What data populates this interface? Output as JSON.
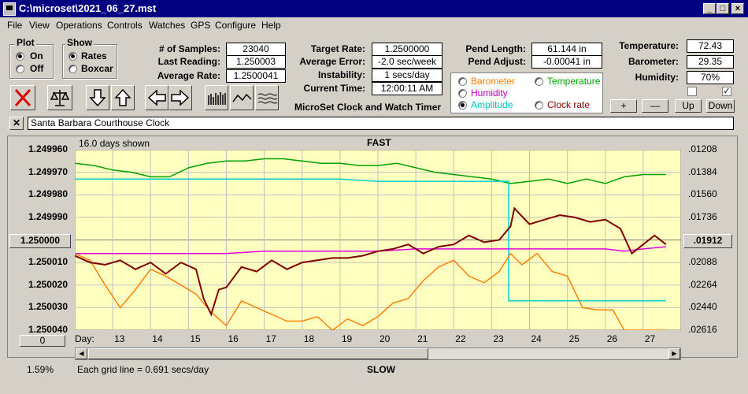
{
  "window": {
    "title": "C:\\microset\\2021_06_27.mst"
  },
  "menu": [
    "File",
    "View",
    "Operations",
    "Controls",
    "Watches",
    "GPS",
    "Configure",
    "Help"
  ],
  "plot_group": {
    "title": "Plot",
    "on": "On",
    "off": "Off",
    "selected": "On"
  },
  "show_group": {
    "title": "Show",
    "rates": "Rates",
    "boxcar": "Boxcar",
    "selected": "Rates"
  },
  "samples": {
    "label": "# of Samples:",
    "value": "23040"
  },
  "last_reading": {
    "label": "Last Reading:",
    "value": "1.250003"
  },
  "average_rate": {
    "label": "Average Rate:",
    "value": "1.2500041"
  },
  "target_rate": {
    "label": "Target Rate:",
    "value": "1.2500000"
  },
  "average_error": {
    "label": "Average Error:",
    "value": "-2.0 sec/week"
  },
  "instability": {
    "label": "Instability:",
    "value": "1 secs/day"
  },
  "current_time": {
    "label": "Current Time:",
    "value": "12:00:11 AM"
  },
  "app_caption": "MicroSet Clock and Watch Timer",
  "pend_length": {
    "label": "Pend Length:",
    "value": "61.144 in"
  },
  "pend_adjust": {
    "label": "Pend Adjust:",
    "value": "-0.00041 in"
  },
  "temperature": {
    "label": "Temperature:",
    "value": "72.43"
  },
  "barometer": {
    "label": "Barometer:",
    "value": "29.35"
  },
  "humidity": {
    "label": "Humidity:",
    "value": "70%"
  },
  "plot_options": {
    "barometer": "Barometer",
    "temperature": "Temperature",
    "humidity": "Humidity",
    "amplitude": "Amplitude",
    "clock_rate": "Clock rate",
    "selected": "Amplitude"
  },
  "option_colors": {
    "barometer": "#ff8000",
    "temperature": "#00a000",
    "humidity": "#c000c0",
    "amplitude": "#00c0c0",
    "clock_rate": "#800000"
  },
  "adjust_buttons": {
    "plus": "+",
    "minus": "—",
    "up": "Up",
    "down": "Down"
  },
  "checkboxes": [
    {
      "checked": false
    },
    {
      "checked": true
    }
  ],
  "clock_name": "Santa Barbara Courthouse Clock",
  "chart_header": {
    "days_shown": "16.0 days shown",
    "top": "FAST",
    "bottom": "SLOW"
  },
  "chart_footer": {
    "day_label": "Day:",
    "grid_note": "Each grid line = 0.691 secs/day",
    "zoom": "1.59%",
    "left_button": "0",
    "center_button": "1.250000",
    "right_button": ".01912"
  },
  "chart_data": {
    "type": "line",
    "x_label": "Day",
    "x_ticks": [
      "13",
      "14",
      "15",
      "16",
      "17",
      "18",
      "19",
      "20",
      "21",
      "22",
      "23",
      "24",
      "25",
      "26",
      "27"
    ],
    "y_ticks_left": [
      "1.249960",
      "1.249970",
      "1.249980",
      "1.249990",
      "1.250000",
      "1.250010",
      "1.250020",
      "1.250030",
      "1.250040"
    ],
    "y_ticks_right": [
      ".01208",
      ".01384",
      ".01560",
      ".01736",
      ".01912",
      ".02088",
      ".02264",
      ".02440",
      ".02616"
    ],
    "xlim": [
      12.0,
      28.0
    ],
    "ylim": [
      1.24996,
      1.25004
    ],
    "grid": true,
    "background": "#ffffc0",
    "series": [
      {
        "name": "Temperature",
        "color": "#00a000",
        "x": [
          12.0,
          12.5,
          13.0,
          13.5,
          14.0,
          14.5,
          15.0,
          15.5,
          16.0,
          16.5,
          17.0,
          17.5,
          18.0,
          18.5,
          19.0,
          19.5,
          20.0,
          20.5,
          21.0,
          21.5,
          22.0,
          22.5,
          23.0,
          23.5,
          24.0,
          24.5,
          25.0,
          25.5,
          26.0,
          26.5,
          27.0,
          27.6
        ],
        "y": [
          1.249966,
          1.249967,
          1.249969,
          1.24997,
          1.249972,
          1.249972,
          1.249968,
          1.249966,
          1.249965,
          1.249965,
          1.249964,
          1.249964,
          1.249965,
          1.249966,
          1.249966,
          1.249967,
          1.249967,
          1.249966,
          1.249968,
          1.24997,
          1.249971,
          1.249972,
          1.249973,
          1.249975,
          1.249974,
          1.249973,
          1.249975,
          1.249973,
          1.249975,
          1.249972,
          1.249971,
          1.249971
        ]
      },
      {
        "name": "Amplitude",
        "color": "#00d0d0",
        "x": [
          12.0,
          13.0,
          14.0,
          15.0,
          16.0,
          17.0,
          18.0,
          19.0,
          20.0,
          21.0,
          22.0,
          22.5,
          23.0,
          23.45,
          23.45,
          24.0,
          25.0,
          26.0,
          27.0,
          27.6
        ],
        "y": [
          1.249973,
          1.249973,
          1.249973,
          1.249973,
          1.249973,
          1.249973,
          1.249973,
          1.249973,
          1.249974,
          1.249974,
          1.249974,
          1.249974,
          1.249974,
          1.249974,
          1.250027,
          1.250027,
          1.250027,
          1.250027,
          1.250027,
          1.250027
        ]
      },
      {
        "name": "Humidity",
        "color": "#e000e0",
        "x": [
          12.0,
          13.0,
          14.0,
          15.0,
          16.0,
          17.0,
          18.0,
          19.0,
          20.0,
          21.0,
          22.0,
          23.0,
          24.0,
          25.0,
          26.0,
          26.5,
          27.0,
          27.6
        ],
        "y": [
          1.250006,
          1.250006,
          1.250006,
          1.250006,
          1.250006,
          1.250005,
          1.250005,
          1.250005,
          1.250005,
          1.250004,
          1.250004,
          1.250004,
          1.250004,
          1.250004,
          1.250004,
          1.250005,
          1.250004,
          1.250003
        ]
      },
      {
        "name": "Barometer",
        "color": "#ff8000",
        "x": [
          12.0,
          12.4,
          12.8,
          13.2,
          13.6,
          14.0,
          14.4,
          14.8,
          15.2,
          15.6,
          16.0,
          16.4,
          16.8,
          17.2,
          17.6,
          18.0,
          18.4,
          18.8,
          19.2,
          19.6,
          20.0,
          20.4,
          20.8,
          21.2,
          21.6,
          22.0,
          22.4,
          22.8,
          23.2,
          23.5,
          23.8,
          24.2,
          24.6,
          25.0,
          25.4,
          25.8,
          26.2,
          26.5,
          27.0,
          27.6
        ],
        "y": [
          1.250006,
          1.250009,
          1.25002,
          1.25003,
          1.250022,
          1.250013,
          1.250016,
          1.25002,
          1.250024,
          1.250032,
          1.250038,
          1.250027,
          1.25003,
          1.250033,
          1.250036,
          1.250036,
          1.250034,
          1.25004,
          1.250035,
          1.250038,
          1.250034,
          1.250028,
          1.250026,
          1.250018,
          1.250012,
          1.250009,
          1.250016,
          1.250019,
          1.250014,
          1.250006,
          1.250011,
          1.250006,
          1.250014,
          1.250016,
          1.25003,
          1.250031,
          1.250031,
          1.25004,
          1.25004,
          1.25004
        ]
      },
      {
        "name": "Clock rate",
        "color": "#800000",
        "x": [
          12.0,
          12.4,
          12.8,
          13.2,
          13.6,
          14.0,
          14.4,
          14.8,
          15.2,
          15.4,
          15.6,
          15.8,
          16.0,
          16.4,
          16.8,
          17.2,
          17.6,
          18.0,
          18.4,
          18.8,
          19.2,
          19.6,
          20.0,
          20.4,
          20.8,
          21.2,
          21.6,
          22.0,
          22.4,
          22.8,
          23.2,
          23.5,
          23.6,
          24.0,
          24.4,
          24.8,
          25.2,
          25.6,
          26.0,
          26.4,
          26.7,
          27.0,
          27.3,
          27.6
        ],
        "y": [
          1.250007,
          1.25001,
          1.250011,
          1.250009,
          1.250013,
          1.25001,
          1.250015,
          1.25001,
          1.250013,
          1.250026,
          1.250033,
          1.250022,
          1.250021,
          1.250012,
          1.250014,
          1.250009,
          1.250013,
          1.25001,
          1.250009,
          1.250008,
          1.250008,
          1.250007,
          1.250005,
          1.250004,
          1.250002,
          1.250006,
          1.250003,
          1.250002,
          1.249998,
          1.250001,
          1.25,
          1.249994,
          1.249986,
          1.249993,
          1.249991,
          1.249989,
          1.24999,
          1.249992,
          1.249991,
          1.249995,
          1.250006,
          1.250002,
          1.249998,
          1.250002
        ]
      }
    ]
  }
}
